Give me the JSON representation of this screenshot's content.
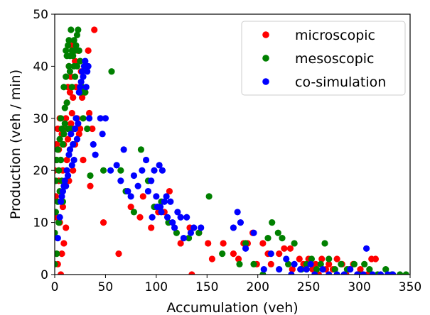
{
  "chart_data": {
    "type": "scatter",
    "title": "",
    "xlabel": "Accumulation (veh)",
    "ylabel": "Production (veh / min)",
    "xlim": [
      0,
      350
    ],
    "ylim": [
      0,
      50
    ],
    "xticks": [
      "0",
      "50",
      "100",
      "150",
      "200",
      "250",
      "300",
      "350"
    ],
    "yticks": [
      "0",
      "10",
      "20",
      "30",
      "40",
      "50"
    ],
    "grid": false,
    "legend_position": "top-right",
    "series": [
      {
        "name": "microscopic",
        "color": "#ff0000",
        "points": [
          [
            0,
            20
          ],
          [
            1,
            15
          ],
          [
            1,
            22
          ],
          [
            2,
            11
          ],
          [
            2,
            25
          ],
          [
            3,
            2
          ],
          [
            3,
            28
          ],
          [
            4,
            18
          ],
          [
            4,
            24
          ],
          [
            5,
            10
          ],
          [
            5,
            30
          ],
          [
            6,
            0
          ],
          [
            6,
            22
          ],
          [
            7,
            27
          ],
          [
            7,
            4
          ],
          [
            8,
            13
          ],
          [
            8,
            20
          ],
          [
            9,
            25
          ],
          [
            9,
            6
          ],
          [
            10,
            28
          ],
          [
            10,
            17
          ],
          [
            11,
            30
          ],
          [
            11,
            9
          ],
          [
            12,
            33
          ],
          [
            12,
            22
          ],
          [
            13,
            26
          ],
          [
            13,
            36
          ],
          [
            14,
            18
          ],
          [
            14,
            40
          ],
          [
            15,
            35
          ],
          [
            15,
            24
          ],
          [
            16,
            38
          ],
          [
            16,
            29
          ],
          [
            17,
            31
          ],
          [
            17,
            44
          ],
          [
            18,
            34
          ],
          [
            18,
            20
          ],
          [
            19,
            28
          ],
          [
            20,
            25
          ],
          [
            20,
            41
          ],
          [
            21,
            36
          ],
          [
            22,
            30
          ],
          [
            23,
            43
          ],
          [
            24,
            27
          ],
          [
            25,
            28
          ],
          [
            26,
            39
          ],
          [
            27,
            34
          ],
          [
            28,
            22
          ],
          [
            30,
            35
          ],
          [
            31,
            40
          ],
          [
            33,
            43
          ],
          [
            34,
            31
          ],
          [
            35,
            17
          ],
          [
            37,
            28
          ],
          [
            39,
            47
          ],
          [
            48,
            10
          ],
          [
            63,
            4
          ],
          [
            75,
            13
          ],
          [
            84,
            11
          ],
          [
            87,
            15
          ],
          [
            95,
            9
          ],
          [
            102,
            12
          ],
          [
            108,
            12
          ],
          [
            113,
            16
          ],
          [
            124,
            6
          ],
          [
            133,
            9
          ],
          [
            135,
            0
          ],
          [
            142,
            8
          ],
          [
            151,
            6
          ],
          [
            155,
            3
          ],
          [
            166,
            6
          ],
          [
            176,
            4
          ],
          [
            181,
            3
          ],
          [
            186,
            6
          ],
          [
            190,
            6
          ],
          [
            195,
            8
          ],
          [
            199,
            2
          ],
          [
            205,
            6
          ],
          [
            210,
            4
          ],
          [
            213,
            2
          ],
          [
            221,
            4
          ],
          [
            226,
            5
          ],
          [
            232,
            5
          ],
          [
            234,
            1
          ],
          [
            241,
            3
          ],
          [
            245,
            2
          ],
          [
            250,
            3
          ],
          [
            254,
            1
          ],
          [
            257,
            2
          ],
          [
            260,
            0
          ],
          [
            263,
            3
          ],
          [
            267,
            1
          ],
          [
            270,
            2
          ],
          [
            274,
            1
          ],
          [
            278,
            3
          ],
          [
            283,
            2
          ],
          [
            287,
            0
          ],
          [
            290,
            1
          ],
          [
            294,
            2
          ],
          [
            298,
            0
          ],
          [
            301,
            1
          ],
          [
            308,
            0
          ],
          [
            312,
            3
          ],
          [
            316,
            3
          ]
        ]
      },
      {
        "name": "mesoscopic",
        "color": "#008000",
        "points": [
          [
            0,
            2
          ],
          [
            0,
            8
          ],
          [
            1,
            12
          ],
          [
            1,
            18
          ],
          [
            2,
            4
          ],
          [
            2,
            22
          ],
          [
            3,
            14
          ],
          [
            3,
            24
          ],
          [
            4,
            20
          ],
          [
            4,
            10
          ],
          [
            5,
            16
          ],
          [
            5,
            26
          ],
          [
            6,
            22
          ],
          [
            6,
            30
          ],
          [
            7,
            18
          ],
          [
            7,
            28
          ],
          [
            8,
            25
          ],
          [
            8,
            14
          ],
          [
            9,
            27
          ],
          [
            9,
            36
          ],
          [
            10,
            32
          ],
          [
            10,
            29
          ],
          [
            11,
            38
          ],
          [
            11,
            43
          ],
          [
            12,
            42
          ],
          [
            12,
            33
          ],
          [
            13,
            28
          ],
          [
            13,
            44
          ],
          [
            14,
            40
          ],
          [
            14,
            45
          ],
          [
            15,
            39
          ],
          [
            15,
            42
          ],
          [
            16,
            47
          ],
          [
            16,
            28
          ],
          [
            17,
            36
          ],
          [
            17,
            43
          ],
          [
            18,
            42
          ],
          [
            18,
            25
          ],
          [
            19,
            45
          ],
          [
            19,
            40
          ],
          [
            20,
            38
          ],
          [
            20,
            43
          ],
          [
            21,
            44
          ],
          [
            22,
            46
          ],
          [
            22,
            40
          ],
          [
            23,
            47
          ],
          [
            24,
            43
          ],
          [
            25,
            41
          ],
          [
            26,
            35
          ],
          [
            27,
            36
          ],
          [
            28,
            30
          ],
          [
            30,
            35
          ],
          [
            32,
            28
          ],
          [
            35,
            19
          ],
          [
            48,
            20
          ],
          [
            56,
            39
          ],
          [
            65,
            20
          ],
          [
            70,
            16
          ],
          [
            78,
            12
          ],
          [
            85,
            24
          ],
          [
            92,
            18
          ],
          [
            98,
            13
          ],
          [
            105,
            14
          ],
          [
            112,
            10
          ],
          [
            120,
            8
          ],
          [
            132,
            7
          ],
          [
            142,
            8
          ],
          [
            152,
            15
          ],
          [
            165,
            4
          ],
          [
            182,
            2
          ],
          [
            188,
            6
          ],
          [
            196,
            2
          ],
          [
            205,
            0
          ],
          [
            210,
            7
          ],
          [
            214,
            10
          ],
          [
            220,
            8
          ],
          [
            224,
            7
          ],
          [
            230,
            2
          ],
          [
            236,
            6
          ],
          [
            243,
            1
          ],
          [
            248,
            2
          ],
          [
            253,
            3
          ],
          [
            258,
            1
          ],
          [
            262,
            2
          ],
          [
            266,
            6
          ],
          [
            270,
            3
          ],
          [
            276,
            1
          ],
          [
            282,
            2
          ],
          [
            288,
            1
          ],
          [
            295,
            2
          ],
          [
            300,
            0
          ],
          [
            305,
            2
          ],
          [
            310,
            1
          ],
          [
            318,
            0
          ],
          [
            326,
            1
          ],
          [
            332,
            0
          ],
          [
            340,
            0
          ],
          [
            346,
            0
          ]
        ]
      },
      {
        "name": "co-simulation",
        "color": "#0000ff",
        "points": [
          [
            3,
            7
          ],
          [
            5,
            11
          ],
          [
            6,
            14
          ],
          [
            7,
            15
          ],
          [
            8,
            16
          ],
          [
            9,
            17
          ],
          [
            10,
            18
          ],
          [
            11,
            17
          ],
          [
            12,
            20
          ],
          [
            13,
            19
          ],
          [
            14,
            23
          ],
          [
            15,
            24
          ],
          [
            16,
            27
          ],
          [
            17,
            21
          ],
          [
            18,
            25
          ],
          [
            19,
            22
          ],
          [
            20,
            28
          ],
          [
            21,
            30
          ],
          [
            22,
            26
          ],
          [
            23,
            29
          ],
          [
            24,
            35
          ],
          [
            25,
            36
          ],
          [
            26,
            37
          ],
          [
            27,
            39
          ],
          [
            28,
            38
          ],
          [
            29,
            40
          ],
          [
            30,
            41
          ],
          [
            31,
            36
          ],
          [
            32,
            39
          ],
          [
            33,
            40
          ],
          [
            34,
            30
          ],
          [
            38,
            25
          ],
          [
            40,
            23
          ],
          [
            45,
            30
          ],
          [
            47,
            27
          ],
          [
            50,
            30
          ],
          [
            55,
            20
          ],
          [
            61,
            21
          ],
          [
            65,
            18
          ],
          [
            68,
            24
          ],
          [
            72,
            16
          ],
          [
            75,
            15
          ],
          [
            78,
            19
          ],
          [
            82,
            17
          ],
          [
            86,
            20
          ],
          [
            90,
            22
          ],
          [
            92,
            16
          ],
          [
            95,
            18
          ],
          [
            96,
            11
          ],
          [
            98,
            20
          ],
          [
            100,
            15
          ],
          [
            101,
            13
          ],
          [
            103,
            21
          ],
          [
            104,
            13
          ],
          [
            105,
            12
          ],
          [
            106,
            20
          ],
          [
            108,
            14
          ],
          [
            110,
            15
          ],
          [
            111,
            11
          ],
          [
            114,
            14
          ],
          [
            116,
            10
          ],
          [
            118,
            9
          ],
          [
            121,
            12
          ],
          [
            124,
            11
          ],
          [
            127,
            7
          ],
          [
            130,
            11
          ],
          [
            134,
            8
          ],
          [
            137,
            9
          ],
          [
            144,
            9
          ],
          [
            176,
            9
          ],
          [
            180,
            12
          ],
          [
            183,
            10
          ],
          [
            188,
            5
          ],
          [
            196,
            8
          ],
          [
            206,
            1
          ],
          [
            213,
            4
          ],
          [
            221,
            1
          ],
          [
            228,
            3
          ],
          [
            233,
            0
          ],
          [
            236,
            2
          ],
          [
            242,
            1
          ],
          [
            248,
            1
          ],
          [
            252,
            2
          ],
          [
            256,
            0
          ],
          [
            264,
            1
          ],
          [
            270,
            0
          ],
          [
            278,
            0
          ],
          [
            285,
            0
          ],
          [
            291,
            1
          ],
          [
            298,
            0
          ],
          [
            304,
            0
          ],
          [
            307,
            5
          ],
          [
            313,
            0
          ],
          [
            321,
            0
          ],
          [
            328,
            0
          ],
          [
            333,
            0
          ]
        ]
      }
    ]
  }
}
